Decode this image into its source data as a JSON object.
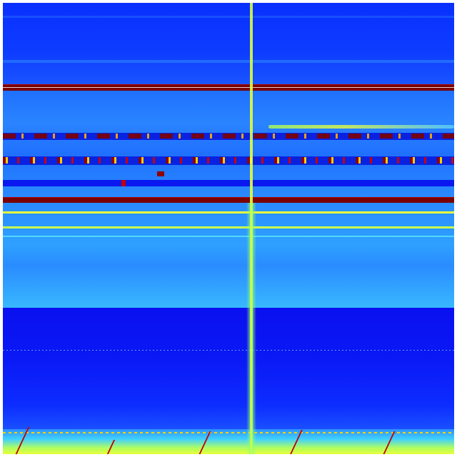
{
  "colors": {
    "deep_blue": "#0a18f0",
    "blue": "#0a3cff",
    "light_blue": "#1f78ff",
    "cyan_blue": "#2e9cff",
    "cyan": "#3ad7ff",
    "yellow": "#e8ff3a",
    "orange": "#ff9a00",
    "dark_red": "#800000",
    "red": "#d00000"
  },
  "colormap": "jet"
}
